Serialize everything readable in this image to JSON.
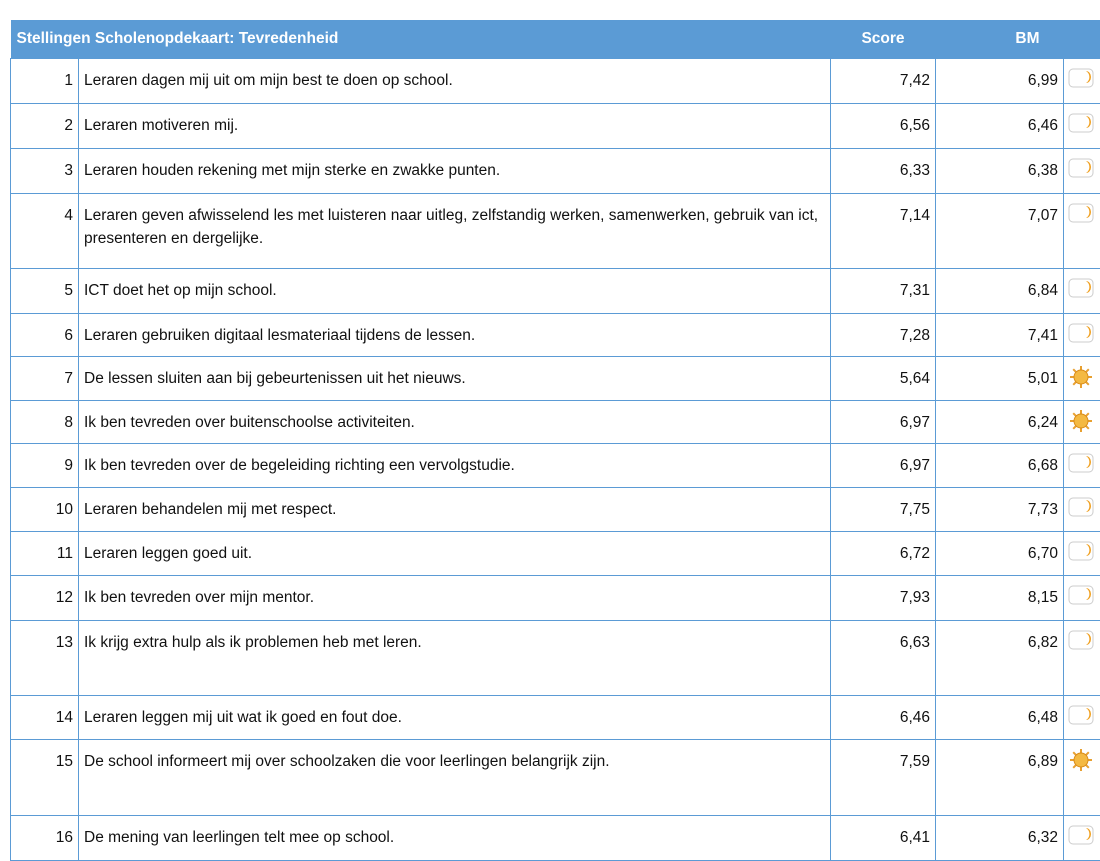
{
  "table": {
    "header": {
      "title": "Stellingen Scholenopdekaart: Tevredenheid",
      "score": "Score",
      "bm": "BM"
    },
    "rows": [
      {
        "nr": "1",
        "text": "Leraren dagen mij uit om mijn best te doen op school.",
        "score": "7,42",
        "bm": "6,99"
      },
      {
        "nr": "2",
        "text": "Leraren motiveren mij.",
        "score": "6,56",
        "bm": "6,46"
      },
      {
        "nr": "3",
        "text": "Leraren houden rekening met mijn sterke en zwakke punten.",
        "score": "6,33",
        "bm": "6,38"
      },
      {
        "nr": "4",
        "text": "Leraren geven afwisselend les met luisteren naar uitleg, zelfstandig werken, samenwerken, gebruik van ict, presenteren en dergelijke.",
        "score": "7,14",
        "bm": "7,07"
      },
      {
        "nr": "5",
        "text": "ICT doet het op mijn school.",
        "score": "7,31",
        "bm": "6,84"
      },
      {
        "nr": "6",
        "text": "Leraren gebruiken digitaal lesmateriaal tijdens de lessen.",
        "score": "7,28",
        "bm": "7,41"
      },
      {
        "nr": "7",
        "text": "De lessen sluiten aan bij gebeurtenissen uit het nieuws.",
        "score": "5,64",
        "bm": "5,01"
      },
      {
        "nr": "8",
        "text": "Ik ben tevreden over buitenschoolse activiteiten.",
        "score": "6,97",
        "bm": "6,24"
      },
      {
        "nr": "9",
        "text": "Ik ben tevreden over de begeleiding richting een vervolgstudie.",
        "score": "6,97",
        "bm": "6,68"
      },
      {
        "nr": "10",
        "text": "Leraren behandelen mij met respect.",
        "score": "7,75",
        "bm": "7,73"
      },
      {
        "nr": "11",
        "text": "Leraren leggen goed uit.",
        "score": "6,72",
        "bm": "6,70"
      },
      {
        "nr": "12",
        "text": "Ik ben tevreden over mijn mentor.",
        "score": "7,93",
        "bm": "8,15"
      },
      {
        "nr": "13",
        "text": "Ik krijg extra hulp als ik problemen heb met leren.",
        "score": "6,63",
        "bm": "6,82"
      },
      {
        "nr": "14",
        "text": "Leraren leggen mij uit wat ik goed en fout doe.",
        "score": "6,46",
        "bm": "6,48"
      },
      {
        "nr": "15",
        "text": "De school informeert mij over schoolzaken die voor leerlingen belangrijk zijn.",
        "score": "7,59",
        "bm": "6,89"
      },
      {
        "nr": "16",
        "text": "De mening van leerlingen telt mee op school.",
        "score": "6,41",
        "bm": "6,32"
      }
    ]
  }
}
